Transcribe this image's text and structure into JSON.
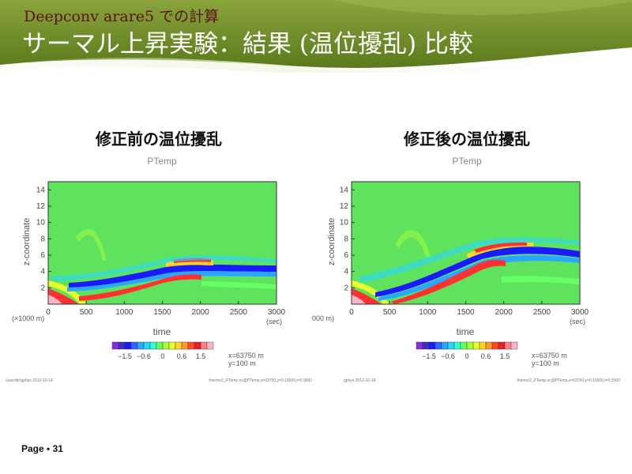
{
  "slide": {
    "subtitle": "Deepconv arare5 での計算",
    "title": "サーマル上昇実験：結果 (温位擾乱) 比較",
    "page_number": "Page ▪ 31",
    "accent_color": "#6a8a26",
    "subtitle_color": "#5a1414"
  },
  "figures": [
    {
      "heading": "修正前の温位擾乱",
      "variable": "PTemp",
      "ylabel": "z-coordinate",
      "xlabel": "time",
      "yunit": "(×1000 m)",
      "xunit": "(sec)",
      "xticks": [
        "0",
        "500",
        "1000",
        "1500",
        "2000",
        "2500",
        "3000"
      ],
      "yticks": [
        "2",
        "4",
        "6",
        "8",
        "10",
        "12",
        "14"
      ],
      "colorbar_labels": [
        "−1.5",
        "−0.6",
        "0",
        "0.6",
        "1.5"
      ],
      "coord_x": "x=63750  m",
      "coord_y": "y=100  m",
      "footer_left": "/user/dir/gphys   2012-10-18",
      "footer_right": "thermo2_PTemp.nc@PTemp,x=63750,y=0:15000,t=0:3000"
    },
    {
      "heading": "修正後の温位擾乱",
      "variable": "PTemp",
      "ylabel": "z-coordinate",
      "xlabel": "time",
      "yunit": "000 m)",
      "xunit": "(sec)",
      "xticks": [
        "0",
        "500",
        "1000",
        "1500",
        "2000",
        "2500",
        "3000"
      ],
      "yticks": [
        "2",
        "4",
        "6",
        "8",
        "10",
        "12",
        "14"
      ],
      "colorbar_labels": [
        "−1.5",
        "−0.6",
        "0",
        "0.6",
        "1.5"
      ],
      "coord_x": "x=63750  m",
      "coord_y": "y=100  m",
      "footer_left": "gphys   2012-10-18",
      "footer_right": "thermo2_PTemp.nc@PTemp,x=63750,y=0:15000,t=0:3000"
    }
  ],
  "colorbar_colors": [
    "#8a2be2",
    "#3f2fbf",
    "#1a1aff",
    "#3a64ff",
    "#29a7ff",
    "#27d7ff",
    "#30ffd0",
    "#66ff66",
    "#a6ff3a",
    "#eaff2a",
    "#ffd42a",
    "#ff9a2a",
    "#ff4a2a",
    "#e8202a",
    "#ff8080",
    "#ffb3c6"
  ],
  "field_background": "#5fe35f"
}
